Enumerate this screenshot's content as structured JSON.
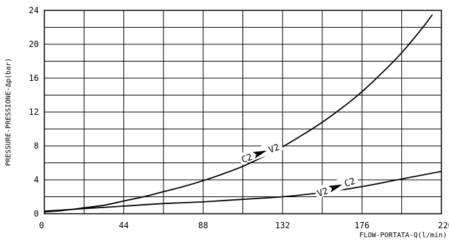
{
  "chart_data": {
    "type": "line",
    "xlabel": "FLOW-PORTATA-Q(l/min)",
    "ylabel": "PRESSURE-PRESSIONE-Δp(bar)",
    "xlim": [
      0,
      220
    ],
    "ylim": [
      0,
      24
    ],
    "x_ticks": [
      "0",
      "44",
      "88",
      "132",
      "176",
      "220"
    ],
    "y_ticks": [
      "0",
      "4",
      "8",
      "12",
      "16",
      "20",
      "24"
    ],
    "grid": true,
    "legend": "none",
    "series": [
      {
        "values": [
          [
            0,
            0.2
          ],
          [
            11,
            0.4
          ],
          [
            22,
            0.7
          ],
          [
            33,
            1.0
          ],
          [
            44,
            1.5
          ],
          [
            55,
            2.0
          ],
          [
            66,
            2.6
          ],
          [
            77,
            3.2
          ],
          [
            88,
            3.9
          ],
          [
            99,
            4.7
          ],
          [
            110,
            5.6
          ],
          [
            121,
            6.7
          ],
          [
            132,
            7.9
          ],
          [
            143,
            9.3
          ],
          [
            154,
            10.8
          ],
          [
            165,
            12.5
          ],
          [
            176,
            14.4
          ],
          [
            187,
            16.6
          ],
          [
            198,
            19.0
          ],
          [
            209,
            21.8
          ],
          [
            215,
            23.5
          ]
        ]
      },
      {
        "values": [
          [
            0,
            0.3
          ],
          [
            22,
            0.6
          ],
          [
            44,
            0.9
          ],
          [
            66,
            1.2
          ],
          [
            88,
            1.4
          ],
          [
            110,
            1.7
          ],
          [
            132,
            2.0
          ],
          [
            154,
            2.5
          ],
          [
            176,
            3.2
          ],
          [
            198,
            4.1
          ],
          [
            220,
            5.0
          ]
        ]
      }
    ],
    "annotations": [
      {
        "id": "upper",
        "from": "C2",
        "to": "V2",
        "x": 120,
        "y": 7.2
      },
      {
        "id": "lower",
        "from": "V2",
        "to": "C2",
        "x": 162,
        "y": 3.2
      }
    ]
  }
}
